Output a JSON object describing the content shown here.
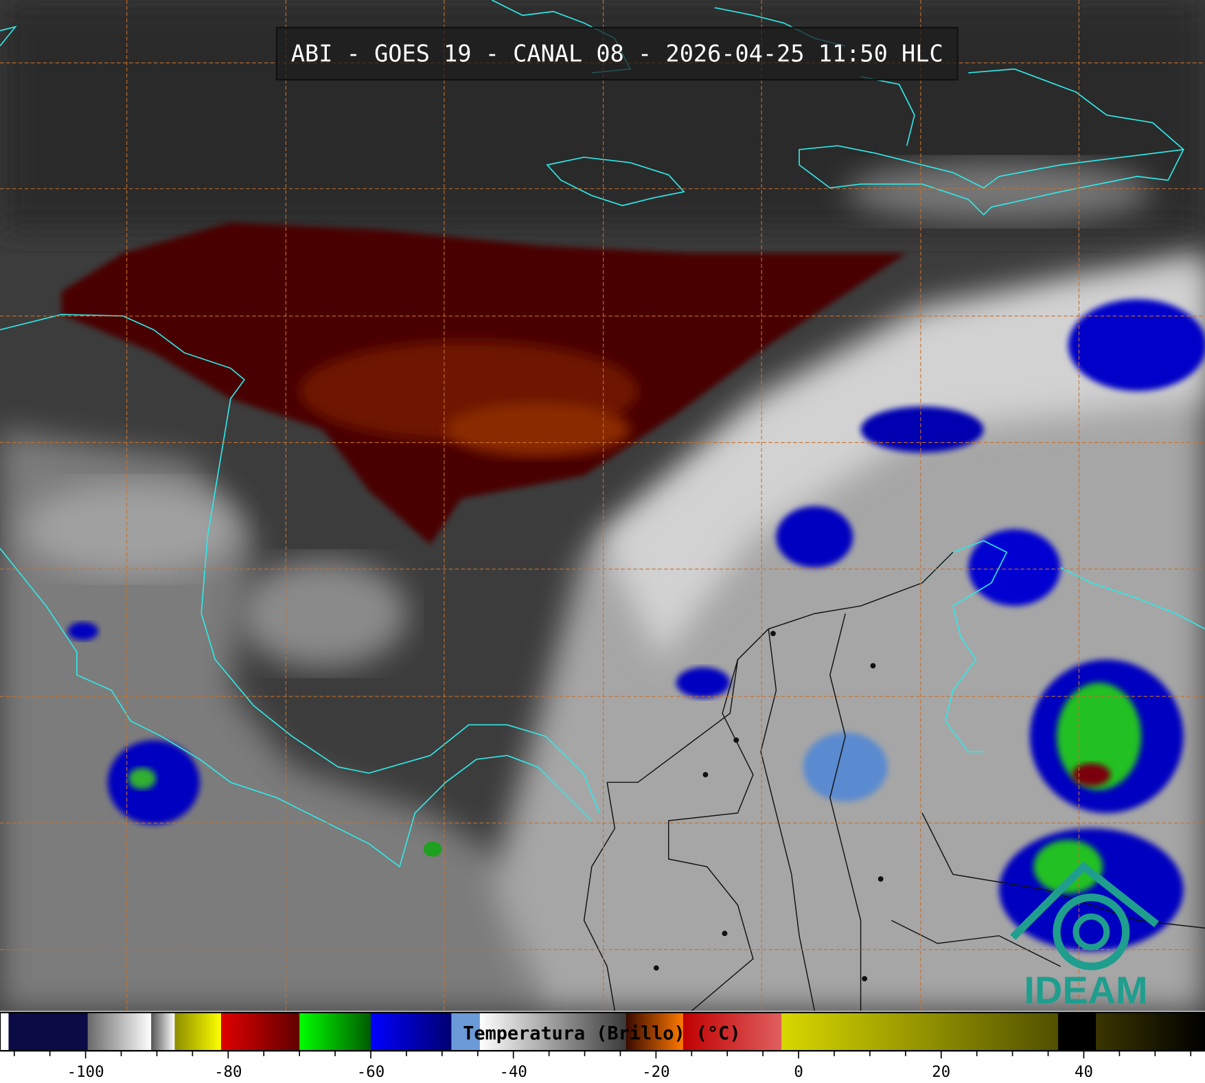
{
  "header": {
    "title": "ABI - GOES 19 - CANAL 08 - 2026-04-25 11:50 HLC"
  },
  "logo": {
    "text": "IDEAM"
  },
  "colorbar": {
    "label": "Temperatura (Brillo) (°C)",
    "lim": [
      -112,
      57
    ],
    "ticks": [
      -100,
      -80,
      -60,
      -40,
      -20,
      0,
      20,
      40
    ],
    "minor_ticks": [
      -110,
      -105,
      -95,
      -90,
      -85,
      -75,
      -70,
      -65,
      -55,
      -50,
      -45,
      -35,
      -30,
      -25,
      -15,
      -10,
      -5,
      5,
      10,
      15,
      25,
      30,
      35,
      45,
      50,
      55
    ],
    "segments": [
      {
        "from": -112,
        "to": -110.8,
        "colors": [
          "#ffffff",
          "#ffffff"
        ]
      },
      {
        "from": -110.8,
        "to": -99.7,
        "colors": [
          "#0b0b45",
          "#0b0b45"
        ]
      },
      {
        "from": -99.7,
        "to": -90.8,
        "colors": [
          "#6a6a6a",
          "#ffffff"
        ]
      },
      {
        "from": -90.8,
        "to": -87.5,
        "colors": [
          "#555555",
          "#ffffff"
        ]
      },
      {
        "from": -87.5,
        "to": -81,
        "colors": [
          "#8c8c00",
          "#ffff00"
        ]
      },
      {
        "from": -81,
        "to": -70,
        "colors": [
          "#e00000",
          "#600000"
        ]
      },
      {
        "from": -70,
        "to": -60,
        "colors": [
          "#00ff00",
          "#005a00"
        ]
      },
      {
        "from": -60,
        "to": -48.7,
        "colors": [
          "#0000ff",
          "#000070"
        ]
      },
      {
        "from": -48.7,
        "to": -44.7,
        "colors": [
          "#6a9ad8",
          "#6a9ad8"
        ]
      },
      {
        "from": -44.7,
        "to": -24.2,
        "colors": [
          "#ffffff",
          "#3a3a3a"
        ]
      },
      {
        "from": -24.2,
        "to": -16.2,
        "colors": [
          "#3a0a00",
          "#ff7a00"
        ]
      },
      {
        "from": -16.2,
        "to": -2.4,
        "colors": [
          "#c00000",
          "#e06060"
        ]
      },
      {
        "from": -2.4,
        "to": 36.4,
        "colors": [
          "#d8d800",
          "#505000"
        ]
      },
      {
        "from": 36.4,
        "to": 41.7,
        "colors": [
          "#000000",
          "#000000"
        ]
      },
      {
        "from": 41.7,
        "to": 57,
        "colors": [
          "#3a3500",
          "#000000"
        ]
      }
    ]
  }
}
